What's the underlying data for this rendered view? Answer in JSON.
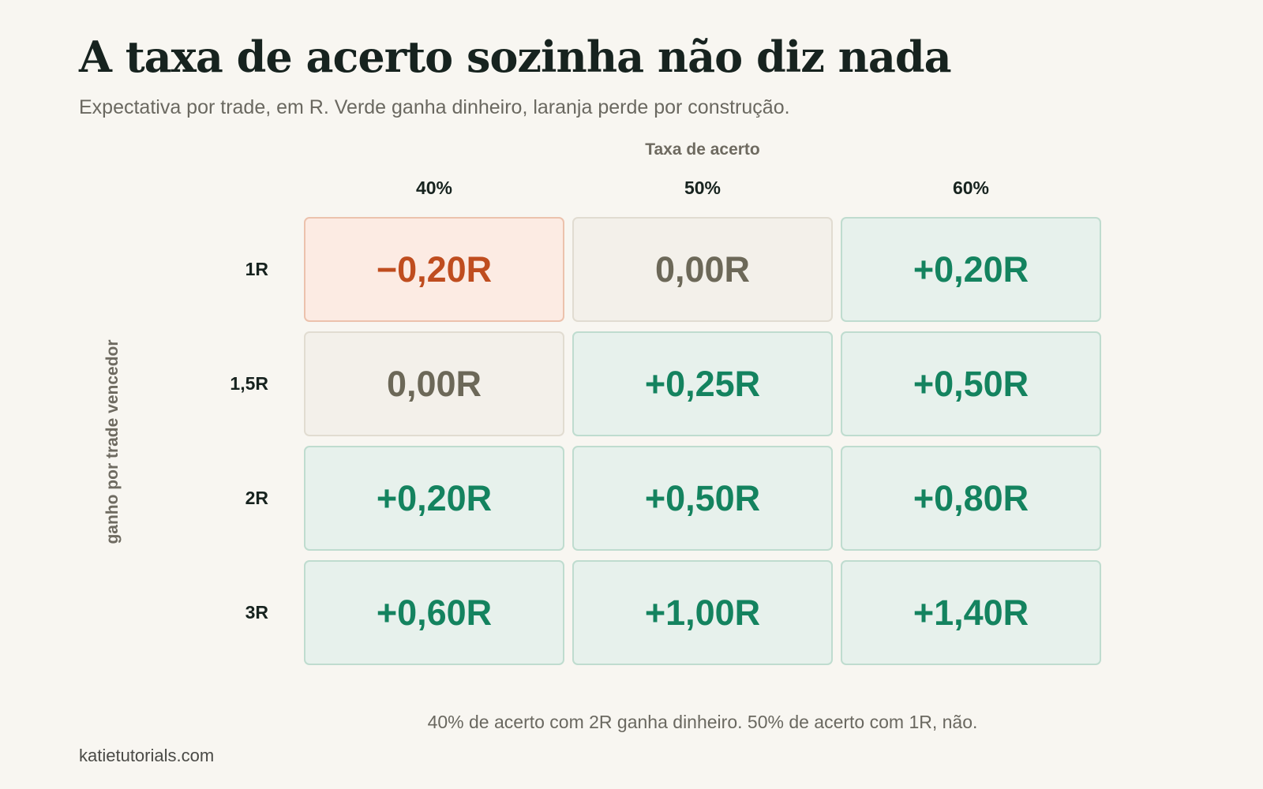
{
  "header": {
    "title": "A taxa de acerto sozinha não diz nada",
    "subtitle": "Expectativa por trade, em R. Verde ganha dinheiro, laranja perde por construção."
  },
  "chart_data": {
    "type": "heatmap",
    "xlabel": "Taxa de acerto",
    "ylabel": "ganho por trade vencedor",
    "x_categories": [
      "40%",
      "50%",
      "60%"
    ],
    "y_categories": [
      "1R",
      "1,5R",
      "2R",
      "3R"
    ],
    "values": [
      [
        -0.2,
        0.0,
        0.2
      ],
      [
        0.0,
        0.25,
        0.5
      ],
      [
        0.2,
        0.5,
        0.8
      ],
      [
        0.6,
        1.0,
        1.4
      ]
    ],
    "labels": [
      [
        "−0,20R",
        "0,00R",
        "+0,20R"
      ],
      [
        "0,00R",
        "+0,25R",
        "+0,50R"
      ],
      [
        "+0,20R",
        "+0,50R",
        "+0,80R"
      ],
      [
        "+0,60R",
        "+1,00R",
        "+1,40R"
      ]
    ],
    "colors": {
      "positive_text": "#14835f",
      "positive_fill": "#e7f1ec",
      "negative_text": "#bf4d1f",
      "negative_fill": "#fcebe3",
      "zero_text": "#6c6858",
      "zero_fill": "#f3f0ea"
    }
  },
  "footer": {
    "note": "40% de acerto com 2R ganha dinheiro. 50% de acerto com 1R, não.",
    "source": "katietutorials.com"
  }
}
